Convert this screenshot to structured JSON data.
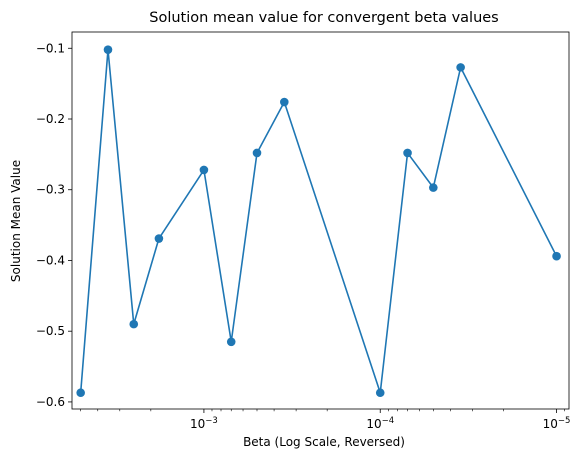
{
  "chart_data": {
    "type": "line",
    "title": "Solution mean value for convergent beta values",
    "xlabel": "Beta (Log Scale, Reversed)",
    "ylabel": "Solution Mean Value",
    "x_scale": "log",
    "x_reversed": true,
    "xlim": [
      0.0056,
      8.5e-06
    ],
    "ylim": [
      -0.61,
      -0.077
    ],
    "grid": false,
    "legend": "none",
    "x_ticks": [
      {
        "value": 0.001,
        "base": "10",
        "exp": "−3"
      },
      {
        "value": 0.0001,
        "base": "10",
        "exp": "−4"
      },
      {
        "value": 1e-05,
        "base": "10",
        "exp": "−5"
      }
    ],
    "y_ticks": [
      {
        "value": -0.1,
        "label": "−0.1"
      },
      {
        "value": -0.2,
        "label": "−0.2"
      },
      {
        "value": -0.3,
        "label": "−0.3"
      },
      {
        "value": -0.4,
        "label": "−0.4"
      },
      {
        "value": -0.5,
        "label": "−0.5"
      },
      {
        "value": -0.6,
        "label": "−0.6"
      }
    ],
    "series": [
      {
        "color": "#1f77b4",
        "marker": "circle",
        "x": [
          0.005,
          0.0035,
          0.0025,
          0.0018,
          0.001,
          0.0007,
          0.0005,
          0.00035,
          0.0001,
          7e-05,
          5e-05,
          3.5e-05,
          1e-05
        ],
        "y": [
          -0.587,
          -0.102,
          -0.49,
          -0.369,
          -0.272,
          -0.515,
          -0.248,
          -0.176,
          -0.587,
          -0.248,
          -0.297,
          -0.127,
          -0.394
        ]
      }
    ]
  }
}
